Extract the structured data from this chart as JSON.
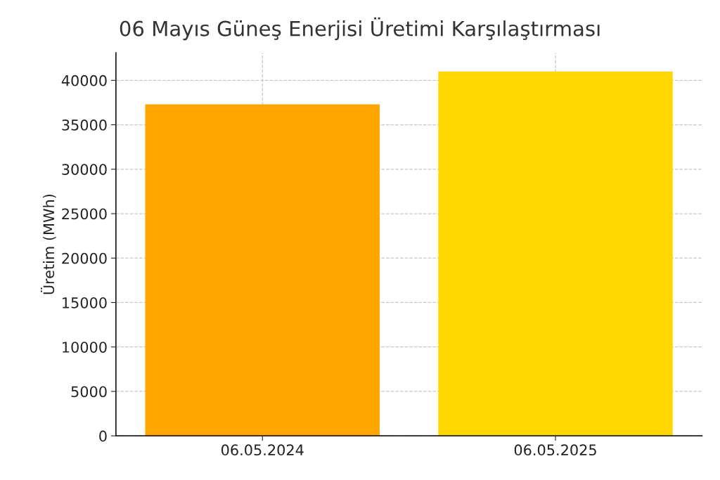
{
  "chart_data": {
    "type": "bar",
    "title": "06 Mayıs Güneş Enerjisi Üretimi Karşılaştırması",
    "ylabel": "Üretim (MWh)",
    "categories": [
      "06.05.2024",
      "06.05.2025"
    ],
    "values": [
      37300,
      41000
    ],
    "colors": [
      "#ffa500",
      "#ffd700"
    ],
    "ylim": [
      0,
      43100
    ],
    "yticks": [
      0,
      5000,
      10000,
      15000,
      20000,
      25000,
      30000,
      35000,
      40000
    ],
    "grid": true
  }
}
